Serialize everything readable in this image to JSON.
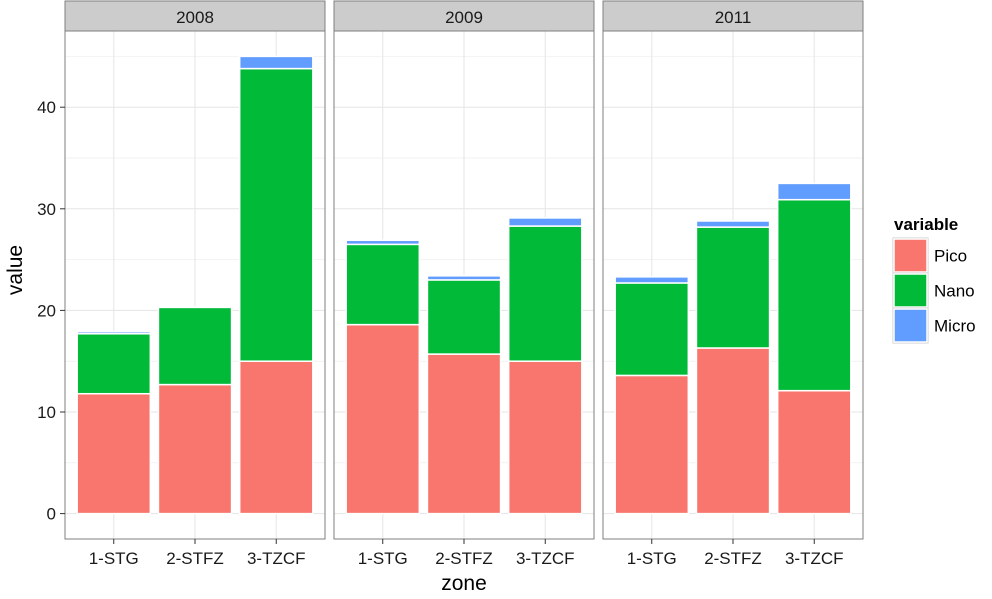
{
  "chart_data": {
    "type": "bar",
    "stacked": true,
    "facets": [
      "2008",
      "2009",
      "2011"
    ],
    "categories": [
      "1-STG",
      "2-STFZ",
      "3-TZCF"
    ],
    "xlabel": "zone",
    "ylabel": "value",
    "ylim": [
      -2.5,
      47.5
    ],
    "yticks": [
      0,
      10,
      20,
      30,
      40
    ],
    "grid": true,
    "legend": {
      "title": "variable",
      "position": "right",
      "entries": [
        "Pico",
        "Nano",
        "Micro"
      ]
    },
    "colors": {
      "Pico": "#F8766D",
      "Nano": "#00BA38",
      "Micro": "#619CFF"
    },
    "series": [
      {
        "name": "Pico",
        "facet_values": [
          [
            11.8,
            12.7,
            15.0
          ],
          [
            18.6,
            15.7,
            15.0
          ],
          [
            13.6,
            16.3,
            12.1
          ]
        ]
      },
      {
        "name": "Nano",
        "facet_values": [
          [
            5.9,
            7.6,
            28.8
          ],
          [
            7.9,
            7.3,
            13.3
          ],
          [
            9.1,
            11.9,
            18.8
          ]
        ]
      },
      {
        "name": "Micro",
        "facet_values": [
          [
            0.2,
            0.05,
            1.2
          ],
          [
            0.4,
            0.4,
            0.8
          ],
          [
            0.6,
            0.6,
            1.6
          ]
        ]
      }
    ]
  }
}
